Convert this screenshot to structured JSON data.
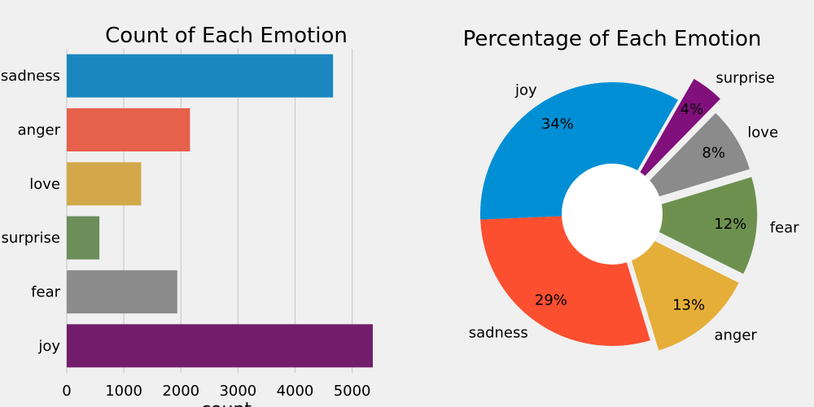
{
  "chart_data": [
    {
      "type": "bar",
      "orientation": "horizontal",
      "title": "Count of Each Emotion",
      "xlabel": "count",
      "ylabel": "",
      "categories": [
        "sadness",
        "anger",
        "love",
        "surprise",
        "fear",
        "joy"
      ],
      "values": [
        4666,
        2159,
        1304,
        572,
        1937,
        5362
      ],
      "colors": [
        "#1a88bf",
        "#e6604b",
        "#d2a84b",
        "#6c8e5a",
        "#8c8c8c",
        "#721d6c"
      ],
      "xlim": [
        0,
        5362
      ],
      "xticks": [
        0,
        1000,
        2000,
        3000,
        4000,
        5000
      ],
      "grid": true
    },
    {
      "type": "pie",
      "variant": "donut",
      "title": "Percentage of Each Emotion",
      "labels": [
        "joy",
        "sadness",
        "anger",
        "fear",
        "love",
        "surprise"
      ],
      "values": [
        34,
        29,
        13,
        12,
        8,
        4
      ],
      "value_labels": [
        "34%",
        "29%",
        "13%",
        "12%",
        "8%",
        "4%"
      ],
      "colors": [
        "#008fd5",
        "#fc4f30",
        "#e5ae38",
        "#6d904f",
        "#8b8b8b",
        "#810f7c"
      ],
      "explode": [
        0,
        0,
        0.1,
        0.1,
        0.1,
        0.2
      ],
      "start_angle": 60,
      "direction": "counterclockwise"
    }
  ]
}
